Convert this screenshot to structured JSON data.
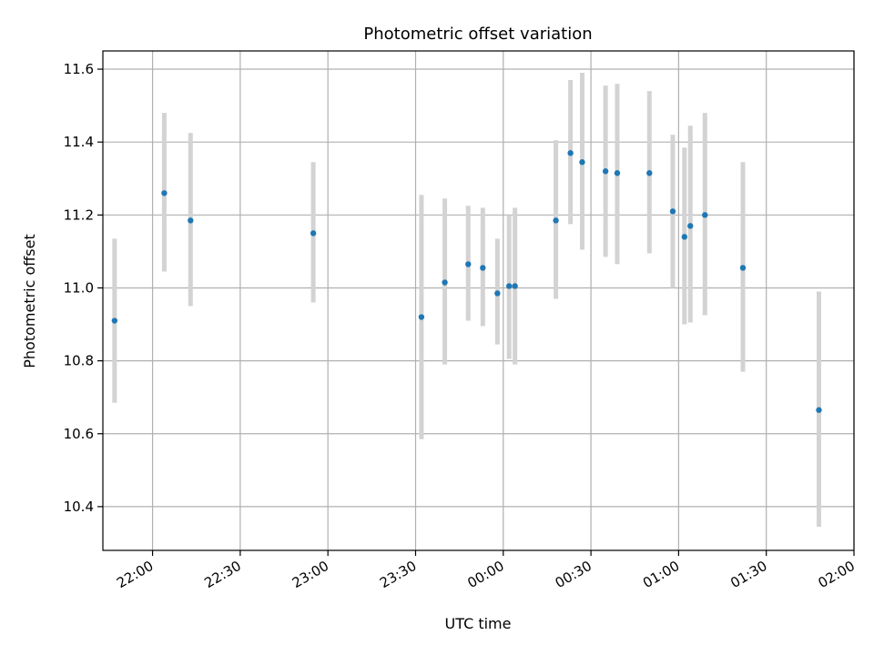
{
  "chart_data": {
    "type": "scatter",
    "title": "Photometric offset variation",
    "xlabel": "UTC time",
    "ylabel": "Photometric offset",
    "grid": true,
    "x_tick_labels": [
      "22:00",
      "22:30",
      "23:00",
      "23:30",
      "00:00",
      "00:30",
      "01:00",
      "01:30",
      "02:00"
    ],
    "y_tick_labels": [
      "10.4",
      "10.6",
      "10.8",
      "11.0",
      "11.2",
      "11.4",
      "11.6"
    ],
    "xlim": [
      "21:43",
      "02:00"
    ],
    "ylim": [
      10.28,
      11.65
    ],
    "colors": {
      "point": "#1f77b4",
      "errorbar": "#d3d3d3",
      "grid": "#b0b0b0"
    },
    "points": [
      {
        "time": "21:47",
        "y": 10.91,
        "ylow": 10.685,
        "yhigh": 11.135
      },
      {
        "time": "22:04",
        "y": 11.26,
        "ylow": 11.045,
        "yhigh": 11.48
      },
      {
        "time": "22:13",
        "y": 11.185,
        "ylow": 10.95,
        "yhigh": 11.425
      },
      {
        "time": "22:55",
        "y": 11.15,
        "ylow": 10.96,
        "yhigh": 11.345
      },
      {
        "time": "23:32",
        "y": 10.92,
        "ylow": 10.585,
        "yhigh": 11.255
      },
      {
        "time": "23:40",
        "y": 11.015,
        "ylow": 10.79,
        "yhigh": 11.245
      },
      {
        "time": "23:48",
        "y": 11.065,
        "ylow": 10.91,
        "yhigh": 11.225
      },
      {
        "time": "23:53",
        "y": 11.055,
        "ylow": 10.895,
        "yhigh": 11.22
      },
      {
        "time": "23:58",
        "y": 10.985,
        "ylow": 10.845,
        "yhigh": 11.135
      },
      {
        "time": "00:02",
        "y": 11.005,
        "ylow": 10.805,
        "yhigh": 11.2
      },
      {
        "time": "00:04",
        "y": 11.005,
        "ylow": 10.79,
        "yhigh": 11.22
      },
      {
        "time": "00:18",
        "y": 11.185,
        "ylow": 10.97,
        "yhigh": 11.405
      },
      {
        "time": "00:23",
        "y": 11.37,
        "ylow": 11.175,
        "yhigh": 11.57
      },
      {
        "time": "00:27",
        "y": 11.345,
        "ylow": 11.105,
        "yhigh": 11.59
      },
      {
        "time": "00:35",
        "y": 11.32,
        "ylow": 11.085,
        "yhigh": 11.555
      },
      {
        "time": "00:39",
        "y": 11.315,
        "ylow": 11.065,
        "yhigh": 11.56
      },
      {
        "time": "00:50",
        "y": 11.315,
        "ylow": 11.095,
        "yhigh": 11.54
      },
      {
        "time": "00:58",
        "y": 11.21,
        "ylow": 11.0,
        "yhigh": 11.42
      },
      {
        "time": "01:02",
        "y": 11.14,
        "ylow": 10.9,
        "yhigh": 11.385
      },
      {
        "time": "01:04",
        "y": 11.17,
        "ylow": 10.905,
        "yhigh": 11.445
      },
      {
        "time": "01:09",
        "y": 11.2,
        "ylow": 10.925,
        "yhigh": 11.48
      },
      {
        "time": "01:22",
        "y": 11.055,
        "ylow": 10.77,
        "yhigh": 11.345
      },
      {
        "time": "01:48",
        "y": 10.665,
        "ylow": 10.345,
        "yhigh": 10.99
      }
    ]
  }
}
